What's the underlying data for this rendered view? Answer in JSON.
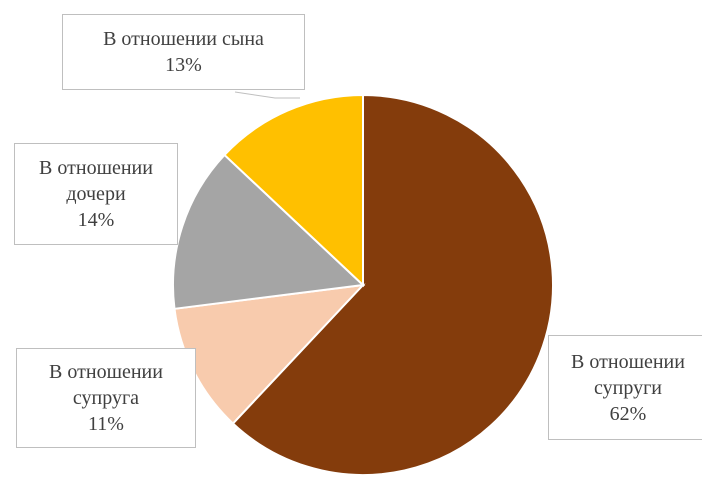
{
  "chart_data": {
    "type": "pie",
    "categories": [
      "В отношении супруги",
      "В отношении супруга",
      "В отношении дочери",
      "В отношении сына"
    ],
    "values": [
      62,
      11,
      14,
      13
    ],
    "value_labels": [
      "62%",
      "11%",
      "14%",
      "13%"
    ],
    "colors": [
      "#843c0c",
      "#f8cbad",
      "#a5a5a5",
      "#ffc000"
    ]
  }
}
